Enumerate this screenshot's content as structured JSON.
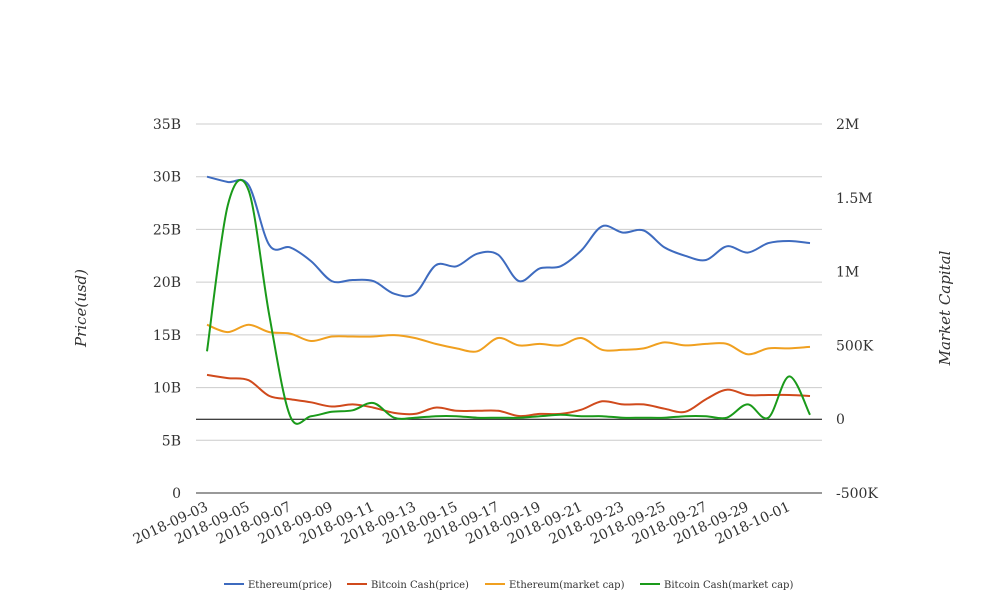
{
  "chart_data": {
    "type": "line",
    "x": [
      "2018-09-03",
      "2018-09-04",
      "2018-09-05",
      "2018-09-06",
      "2018-09-07",
      "2018-09-08",
      "2018-09-09",
      "2018-09-10",
      "2018-09-11",
      "2018-09-12",
      "2018-09-13",
      "2018-09-14",
      "2018-09-15",
      "2018-09-16",
      "2018-09-17",
      "2018-09-18",
      "2018-09-19",
      "2018-09-20",
      "2018-09-21",
      "2018-09-22",
      "2018-09-23",
      "2018-09-24",
      "2018-09-25",
      "2018-09-26",
      "2018-09-27",
      "2018-09-28",
      "2018-09-29",
      "2018-09-30",
      "2018-10-01",
      "2018-10-02"
    ],
    "x_tick_labels": [
      "2018-09-03",
      "2018-09-05",
      "2018-09-07",
      "2018-09-09",
      "2018-09-11",
      "2018-09-13",
      "2018-09-15",
      "2018-09-17",
      "2018-09-19",
      "2018-09-21",
      "2018-09-23",
      "2018-09-25",
      "2018-09-27",
      "2018-09-29",
      "2018-10-01"
    ],
    "ylabel_left": "Price(usd)",
    "ylabel_right": "Market Capital",
    "ylim_left": [
      0,
      35000000000
    ],
    "ylim_right": [
      -500000,
      2000000
    ],
    "y_ticks_left": [
      "0",
      "5B",
      "10B",
      "15B",
      "20B",
      "25B",
      "30B",
      "35B"
    ],
    "y_ticks_right": [
      "-500K",
      "0",
      "500K",
      "1M",
      "1.5M",
      "2M"
    ],
    "grid": true,
    "legend_position": "bottom",
    "series": [
      {
        "name": "Ethereum(price)",
        "axis": "left",
        "color": "#3e6bbf",
        "values": [
          30000000000,
          29500000000,
          29200000000,
          23500000000,
          23300000000,
          22000000000,
          20100000000,
          20200000000,
          20100000000,
          18900000000,
          18900000000,
          21600000000,
          21500000000,
          22700000000,
          22600000000,
          20100000000,
          21300000000,
          21500000000,
          23000000000,
          25300000000,
          24700000000,
          24900000000,
          23300000000,
          22500000000,
          22100000000,
          23400000000,
          22800000000,
          23700000000,
          23900000000,
          23700000000
        ]
      },
      {
        "name": "Bitcoin Cash(price)",
        "axis": "left",
        "color": "#d04a1c",
        "values": [
          11200000000,
          10900000000,
          10700000000,
          9200000000,
          8900000000,
          8600000000,
          8200000000,
          8400000000,
          8100000000,
          7600000000,
          7500000000,
          8100000000,
          7800000000,
          7800000000,
          7800000000,
          7300000000,
          7500000000,
          7500000000,
          7900000000,
          8700000000,
          8400000000,
          8400000000,
          8000000000,
          7700000000,
          8900000000,
          9800000000,
          9300000000,
          9300000000,
          9300000000,
          9200000000
        ]
      },
      {
        "name": "Ethereum(market cap)",
        "axis": "right",
        "color": "#f0a020",
        "values": [
          640000,
          590000,
          640000,
          590000,
          580000,
          530000,
          560000,
          560000,
          560000,
          570000,
          550000,
          510000,
          480000,
          460000,
          550000,
          500000,
          510000,
          500000,
          550000,
          470000,
          470000,
          480000,
          520000,
          500000,
          510000,
          510000,
          440000,
          480000,
          480000,
          490000
        ]
      },
      {
        "name": "Bitcoin Cash(market cap)",
        "axis": "right",
        "color": "#1a9a1a",
        "values": [
          460000,
          1450000,
          1550000,
          700000,
          20000,
          20000,
          50000,
          60000,
          110000,
          10000,
          10000,
          20000,
          20000,
          10000,
          10000,
          10000,
          20000,
          30000,
          20000,
          20000,
          10000,
          10000,
          10000,
          20000,
          20000,
          10000,
          100000,
          10000,
          290000,
          30000
        ]
      }
    ]
  }
}
